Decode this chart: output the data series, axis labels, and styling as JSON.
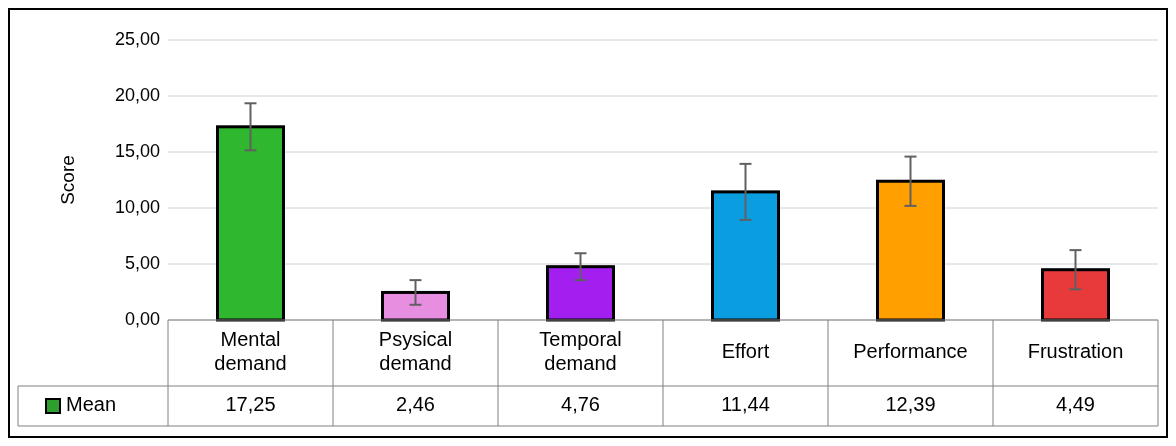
{
  "chart_data": {
    "type": "bar",
    "ylabel": "Score",
    "categories": [
      "Mental demand",
      "Psysical demand",
      "Temporal demand",
      "Effort",
      "Performance",
      "Frustration"
    ],
    "series": [
      {
        "name": "Mean",
        "color": "#2e9e2e",
        "colors": [
          "#2fb82f",
          "#e88ee0",
          "#a21ff0",
          "#0a9ee0",
          "#ffa000",
          "#e83a3a"
        ],
        "values": [
          17.25,
          2.46,
          4.76,
          11.44,
          12.39,
          4.49
        ],
        "errors": [
          2.1,
          1.1,
          1.2,
          2.5,
          2.2,
          1.75
        ],
        "value_labels": [
          "17,25",
          "2,46",
          "4,76",
          "11,44",
          "12,39",
          "4,49"
        ]
      }
    ],
    "ylim": [
      0,
      25
    ],
    "yticks": [
      {
        "value": 0,
        "label": "0,00"
      },
      {
        "value": 5,
        "label": "5,00"
      },
      {
        "value": 10,
        "label": "10,00"
      },
      {
        "value": 15,
        "label": "15,00"
      },
      {
        "value": 20,
        "label": "20,00"
      },
      {
        "value": 25,
        "label": "25,00"
      }
    ],
    "grid": "y",
    "legend": "bottom left"
  }
}
